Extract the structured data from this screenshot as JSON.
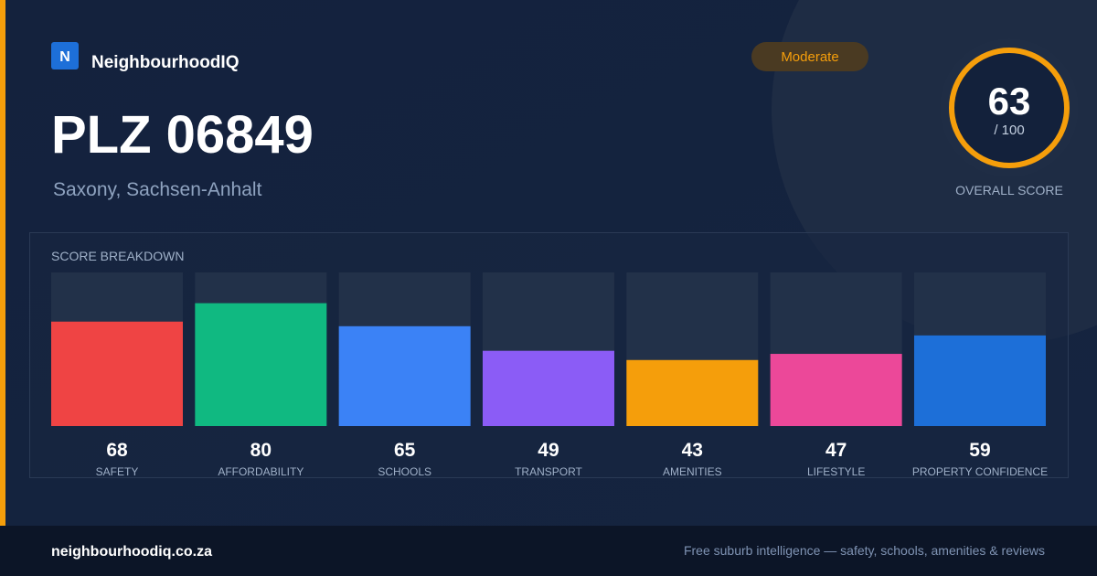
{
  "brand": {
    "logo": "N",
    "name": "NeighbourhoodIQ"
  },
  "badge": "Moderate",
  "header": {
    "title": "PLZ 06849",
    "subtitle": "Saxony, Sachsen-Anhalt"
  },
  "score": {
    "value": 63,
    "out_of": "/ 100",
    "label": "OVERALL SCORE"
  },
  "chart_data": {
    "type": "bar",
    "title": "SCORE BREAKDOWN",
    "categories": [
      "SAFETY",
      "AFFORDABILITY",
      "SCHOOLS",
      "TRANSPORT",
      "AMENITIES",
      "LIFESTYLE",
      "PROPERTY CONFIDENCE"
    ],
    "values": [
      68,
      80,
      65,
      49,
      43,
      47,
      59
    ],
    "colors": [
      "#ef4444",
      "#10b981",
      "#3b82f6",
      "#8b5cf6",
      "#f59e0b",
      "#ec4899",
      "#1d6fd8"
    ],
    "ylim": [
      0,
      100
    ]
  },
  "footer": {
    "url": "neighbourhoodiq.co.za",
    "tagline": "Free suburb intelligence — safety, schools, amenities & reviews"
  }
}
